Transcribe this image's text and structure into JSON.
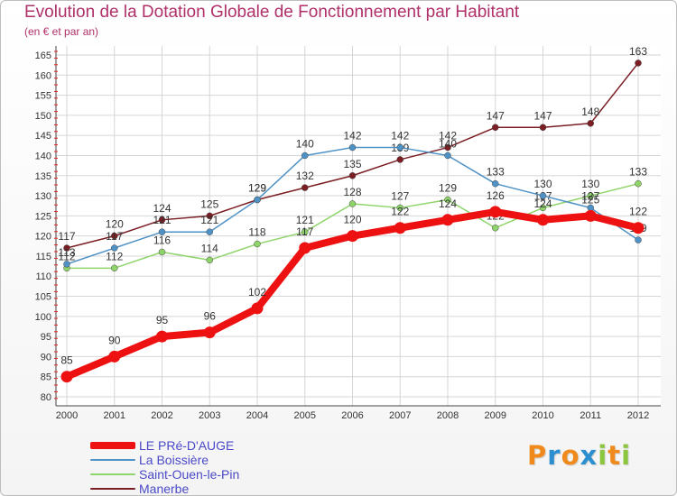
{
  "chart_data": {
    "type": "line",
    "title": "Evolution de la Dotation Globale de Fonctionnement par Habitant",
    "subtitle": "(en € et par an)",
    "xlabel": "",
    "ylabel": "",
    "categories": [
      "2000",
      "2001",
      "2002",
      "2003",
      "2004",
      "2005",
      "2006",
      "2007",
      "2008",
      "2009",
      "2010",
      "2011",
      "2012"
    ],
    "ylim": [
      80,
      165
    ],
    "yticks": [
      80,
      85,
      90,
      95,
      100,
      105,
      110,
      115,
      120,
      125,
      130,
      135,
      140,
      145,
      150,
      155,
      160,
      165
    ],
    "grid": true,
    "legend_position": "bottom-left",
    "series": [
      {
        "name": "Manerbe",
        "color": "#7b1e24",
        "values": [
          117,
          120,
          124,
          125,
          129,
          132,
          135,
          139,
          142,
          147,
          147,
          148,
          163
        ]
      },
      {
        "name": "Saint-Ouen-le-Pin",
        "color": "#8fd46a",
        "values": [
          112,
          112,
          116,
          114,
          118,
          121,
          128,
          127,
          129,
          122,
          127,
          130,
          133
        ]
      },
      {
        "name": "La Boissière",
        "color": "#4f92c6",
        "values": [
          113,
          117,
          121,
          121,
          129,
          140,
          142,
          142,
          140,
          133,
          130,
          127,
          119
        ]
      },
      {
        "name": "LE PRé-D'AUGE",
        "color": "#ee1111",
        "values": [
          85,
          90,
          95,
          96,
          102,
          117,
          120,
          122,
          124,
          126,
          124,
          125,
          122
        ]
      }
    ]
  },
  "legend": [
    {
      "name": "LE PRé-D'AUGE",
      "color": "#ee1111"
    },
    {
      "name": "La Boissière",
      "color": "#4f92c6"
    },
    {
      "name": "Saint-Ouen-le-Pin",
      "color": "#8fd46a"
    },
    {
      "name": "Manerbe",
      "color": "#7b1e24"
    }
  ],
  "brand": {
    "letters": [
      "P",
      "r",
      "o",
      "x",
      "i",
      "t",
      "i"
    ],
    "colors": [
      "#f08a1c",
      "#2e8fd0",
      "#f08a1c",
      "#2e8fd0",
      "#8cc63f",
      "#f08a1c",
      "#8cc63f"
    ]
  }
}
